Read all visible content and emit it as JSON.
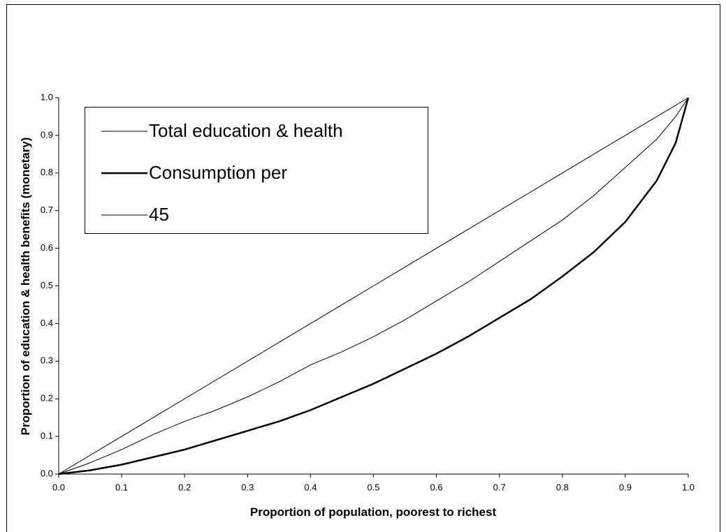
{
  "chart_data": {
    "type": "line",
    "x_label": "Proportion of population, poorest to richest",
    "y_label": "Proportion of education & health benefits (monetary)",
    "x": [
      0,
      0.05,
      0.1,
      0.15,
      0.2,
      0.25,
      0.3,
      0.35,
      0.4,
      0.45,
      0.5,
      0.55,
      0.6,
      0.65,
      0.7,
      0.75,
      0.8,
      0.85,
      0.9,
      0.95,
      0.98,
      1
    ],
    "series": [
      {
        "name": "Total education & health",
        "color": "#000000",
        "width": 1,
        "values": [
          0,
          0.03,
          0.065,
          0.105,
          0.14,
          0.17,
          0.205,
          0.245,
          0.29,
          0.325,
          0.365,
          0.41,
          0.46,
          0.51,
          0.565,
          0.62,
          0.675,
          0.74,
          0.815,
          0.89,
          0.95,
          1
        ]
      },
      {
        "name": "Consumption per",
        "color": "#000000",
        "width": 2.5,
        "values": [
          0,
          0.01,
          0.025,
          0.045,
          0.065,
          0.09,
          0.115,
          0.14,
          0.17,
          0.205,
          0.24,
          0.28,
          0.32,
          0.365,
          0.415,
          0.465,
          0.525,
          0.59,
          0.67,
          0.78,
          0.88,
          1
        ]
      },
      {
        "name": "45",
        "color": "#000000",
        "width": 1,
        "values": [
          0,
          0.05,
          0.1,
          0.15,
          0.2,
          0.25,
          0.3,
          0.35,
          0.4,
          0.45,
          0.5,
          0.55,
          0.6,
          0.65,
          0.7,
          0.75,
          0.8,
          0.85,
          0.9,
          0.95,
          0.98,
          1
        ]
      }
    ],
    "xlim": [
      0,
      1
    ],
    "ylim": [
      0,
      1
    ],
    "xticks": [
      {
        "value": 0,
        "label": "0.0"
      },
      0.1,
      0.2,
      0.3,
      0.4,
      0.5,
      0.6,
      0.7,
      0.8,
      0.9,
      {
        "value": 1,
        "label": "1.0"
      }
    ],
    "yticks": [
      {
        "value": 0,
        "label": "0.0"
      },
      0.1,
      0.2,
      0.3,
      0.4,
      0.5,
      0.6,
      0.7,
      0.8,
      0.9,
      {
        "value": 1,
        "label": "1.0"
      }
    ],
    "grid": false,
    "legend": "upper left"
  }
}
